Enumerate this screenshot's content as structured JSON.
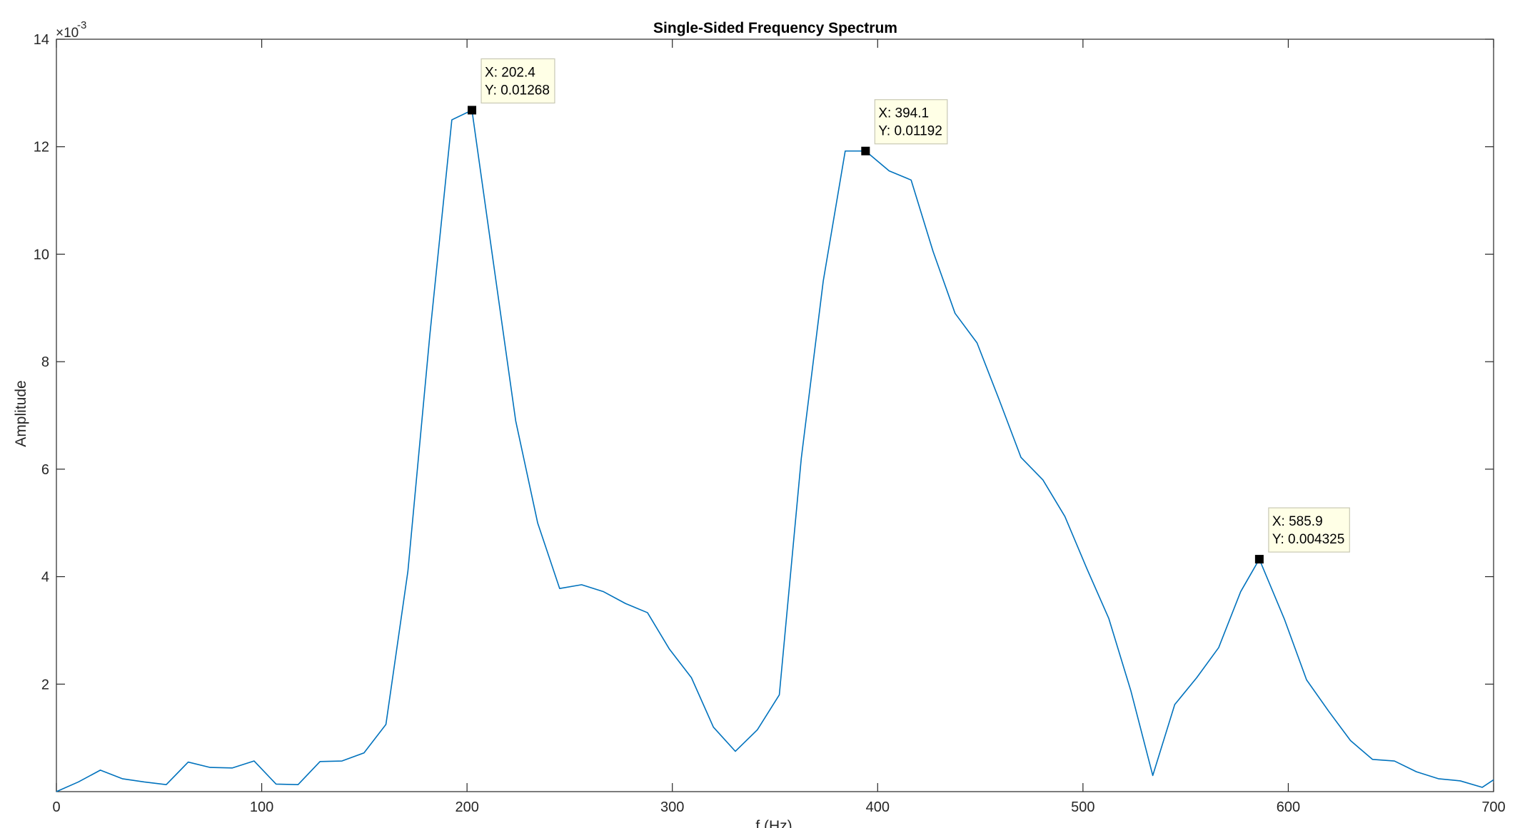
{
  "chart_data": {
    "type": "line",
    "title": "Single-Sided Frequency Spectrum",
    "xlabel": "f (Hz)",
    "ylabel": "Amplitude",
    "y_multiplier_base": "×10",
    "y_multiplier_exponent": "-3",
    "xlim": [
      0,
      700
    ],
    "ylim": [
      0,
      14
    ],
    "grid": false,
    "x_ticks": [
      0,
      100,
      200,
      300,
      400,
      500,
      600,
      700
    ],
    "y_ticks": [
      2,
      4,
      6,
      8,
      10,
      12,
      14
    ],
    "x_tick_labels": [
      "0",
      "100",
      "200",
      "300",
      "400",
      "500",
      "600",
      "700"
    ],
    "y_tick_labels": [
      "2",
      "4",
      "6",
      "8",
      "10",
      "12",
      "14"
    ],
    "line_color": "#0072BD",
    "series": [
      {
        "x": [
          0,
          10.7,
          21.4,
          32.1,
          42.8,
          53.5,
          64.2,
          74.9,
          85.6,
          96.3,
          107,
          117.7,
          128.4,
          139.1,
          149.8,
          160.5,
          171.2,
          181.9,
          192.6,
          202.4,
          213,
          223.7,
          234.4,
          245.1,
          255.8,
          266.5,
          277.2,
          287.9,
          298.6,
          309.3,
          320,
          330.7,
          341.4,
          352.1,
          362.8,
          373.5,
          384.2,
          394.1,
          405.6,
          416.3,
          427,
          437.7,
          448.4,
          459.1,
          469.8,
          480.5,
          491.2,
          501.9,
          512.6,
          523.3,
          534,
          544.7,
          555.4,
          566.1,
          576.8,
          585.9,
          598.2,
          608.9,
          619.6,
          630.3,
          641,
          651.7,
          662.4,
          673.1,
          683.8,
          694.5,
          700
        ],
        "y": [
          0.0,
          0.18,
          0.4,
          0.24,
          0.18,
          0.13,
          0.55,
          0.45,
          0.44,
          0.57,
          0.14,
          0.13,
          0.56,
          0.57,
          0.72,
          1.25,
          4.1,
          8.5,
          12.5,
          12.68,
          9.8,
          6.9,
          5.0,
          3.78,
          3.85,
          3.72,
          3.5,
          3.33,
          2.65,
          2.12,
          1.2,
          0.75,
          1.15,
          1.8,
          6.2,
          9.5,
          11.92,
          11.92,
          11.55,
          11.38,
          10.05,
          8.9,
          8.35,
          7.3,
          6.22,
          5.8,
          5.12,
          4.15,
          3.22,
          1.88,
          0.3,
          1.62,
          2.12,
          2.68,
          3.72,
          4.325,
          3.2,
          2.08,
          1.5,
          0.95,
          0.6,
          0.57,
          0.37,
          0.24,
          0.2,
          0.08,
          0.22
        ]
      }
    ],
    "datatips": [
      {
        "x_text": "X: 202.4",
        "y_text": "Y: 0.01268",
        "x": 202.4,
        "y": 12.68
      },
      {
        "x_text": "X: 394.1",
        "y_text": "Y: 0.01192",
        "x": 394.1,
        "y": 11.92
      },
      {
        "x_text": "X: 585.9",
        "y_text": "Y: 0.004325",
        "x": 585.9,
        "y": 4.325
      }
    ]
  }
}
